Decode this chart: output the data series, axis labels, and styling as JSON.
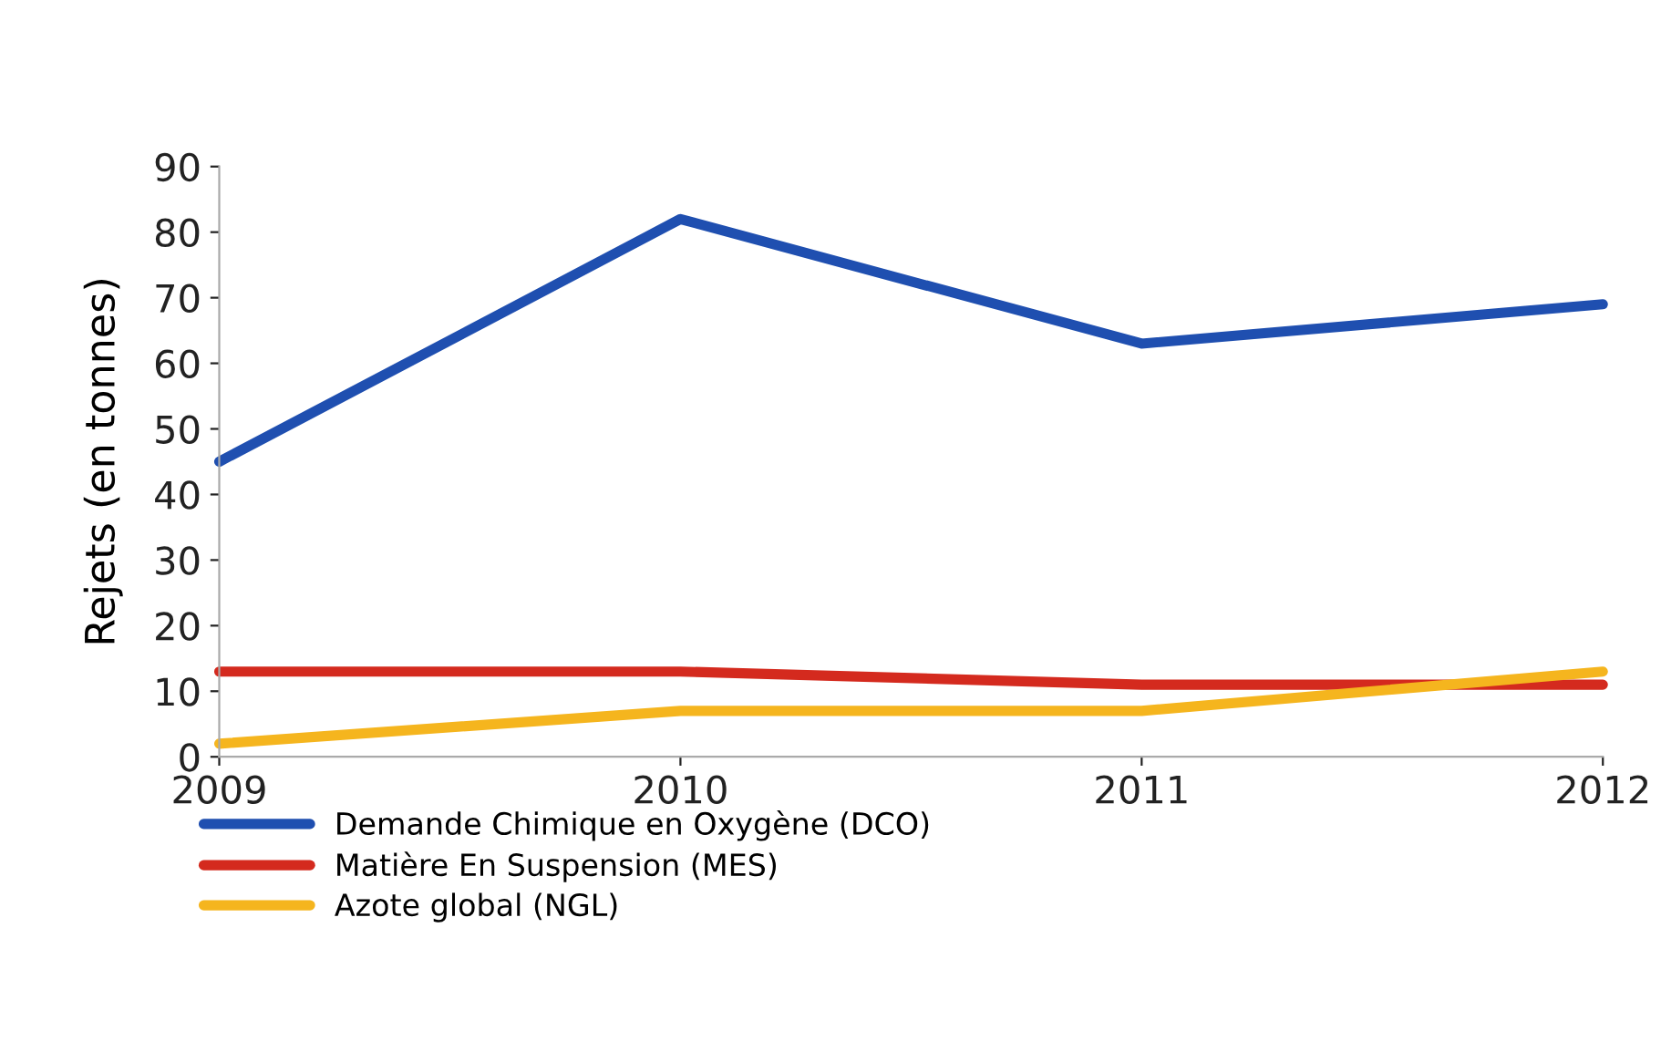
{
  "chart_data": {
    "type": "line",
    "ylabel": "Rejets (en tonnes)",
    "x": [
      2009,
      2010,
      2011,
      2012
    ],
    "xlim": [
      2009,
      2012
    ],
    "xticks": [
      2009,
      2010,
      2011,
      2012
    ],
    "ylim": [
      0,
      90
    ],
    "yticks": [
      0,
      10,
      20,
      30,
      40,
      50,
      60,
      70,
      80,
      90
    ],
    "grid": false,
    "legend": "bottom",
    "marker": "none",
    "line_style": "solid",
    "series": [
      {
        "name": "Demande Chimique en Oxygène (DCO)",
        "color": "#1f4fb0",
        "values": [
          45,
          82,
          63,
          69
        ]
      },
      {
        "name": "Matière En Suspension (MES)",
        "color": "#d42a1e",
        "values": [
          13,
          13,
          11,
          11
        ]
      },
      {
        "name": "Azote global (NGL)",
        "color": "#f5b51e",
        "values": [
          2,
          7,
          7,
          13
        ]
      }
    ]
  }
}
